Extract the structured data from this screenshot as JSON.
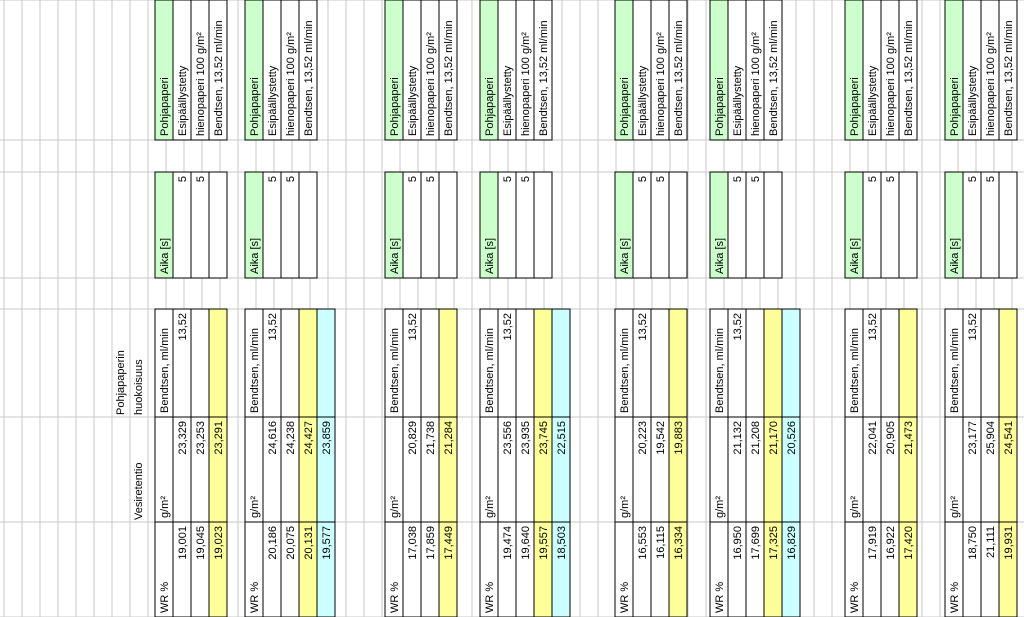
{
  "colors": {
    "green": "#ccffcc",
    "yellow": "#ffff99",
    "cyan": "#ccffff",
    "grid": "#c8c8c8",
    "border": "#000000",
    "text": "#000000"
  },
  "headers": {
    "vesiretentio": "Vesiretentio",
    "pohjapaperin_1": "Pohjapaperin",
    "pohjapaperin_2": "huokoisuus"
  },
  "blocks": [
    {
      "wr_label": "WR %",
      "wr_values": [
        "19,001",
        "19,045",
        "19,023"
      ],
      "gsm_label": "g/m²",
      "gsm_values": [
        "23,329",
        "23,253",
        "23,291"
      ],
      "bendtsen_label": "Bendtsen, ml/min",
      "bendtsen_values": [
        "13,52",
        "",
        ""
      ],
      "aika_label": "Aika [s]",
      "aika_values": [
        "5",
        "5",
        ""
      ],
      "info": [
        "Pohjapaperi",
        "Esipäällystetty",
        "hienopaperi 100 g/m²",
        "Bendtsen, 13,52 ml/min"
      ]
    },
    {
      "wr_label": "WR %",
      "wr_values": [
        "20,186",
        "20,075",
        "20,131",
        "19,577"
      ],
      "gsm_label": "g/m²",
      "gsm_values": [
        "24,616",
        "24,238",
        "24,427",
        "23,859"
      ],
      "bendtsen_label": "Bendtsen, ml/min",
      "bendtsen_values": [
        "13,52",
        "",
        "",
        ""
      ],
      "aika_label": "Aika [s]",
      "aika_values": [
        "5",
        "5",
        ""
      ],
      "info": [
        "Pohjapaperi",
        "Esipäällystetty",
        "hienopaperi 100 g/m²",
        "Bendtsen, 13,52 ml/min"
      ]
    },
    {
      "wr_label": "WR %",
      "wr_values": [
        "17,038",
        "17,859",
        "17,449"
      ],
      "gsm_label": "g/m²",
      "gsm_values": [
        "20,829",
        "21,738",
        "21,284"
      ],
      "bendtsen_label": "Bendtsen, ml/min",
      "bendtsen_values": [
        "13,52",
        "",
        ""
      ],
      "aika_label": "Aika [s]",
      "aika_values": [
        "5",
        "5",
        ""
      ],
      "info": [
        "Pohjapaperi",
        "Esipäällystetty",
        "hienopaperi 100 g/m²",
        "Bendtsen, 13,52 ml/min"
      ]
    },
    {
      "wr_label": "WR %",
      "wr_values": [
        "19,474",
        "19,640",
        "19,557",
        "18,503"
      ],
      "gsm_label": "g/m²",
      "gsm_values": [
        "23,556",
        "23,935",
        "23,745",
        "22,515"
      ],
      "bendtsen_label": "Bendtsen, ml/min",
      "bendtsen_values": [
        "13,52",
        "",
        "",
        ""
      ],
      "aika_label": "Aika [s]",
      "aika_values": [
        "5",
        "5",
        ""
      ],
      "info": [
        "Pohjapaperi",
        "Esipäällystetty",
        "hienopaperi 100 g/m²",
        "Bendtsen, 13,52 ml/min"
      ]
    },
    {
      "wr_label": "WR %",
      "wr_values": [
        "16,553",
        "16,115",
        "16,334"
      ],
      "gsm_label": "g/m²",
      "gsm_values": [
        "20,223",
        "19,542",
        "19,883"
      ],
      "bendtsen_label": "Bendtsen, ml/min",
      "bendtsen_values": [
        "13,52",
        "",
        ""
      ],
      "aika_label": "Aika [s]",
      "aika_values": [
        "5",
        "5",
        ""
      ],
      "info": [
        "Pohjapaperi",
        "Esipäällystetty",
        "hienopaperi 100 g/m²",
        "Bendtsen, 13,52 ml/min"
      ]
    },
    {
      "wr_label": "WR %",
      "wr_values": [
        "16,950",
        "17,699",
        "17,325",
        "16,829"
      ],
      "gsm_label": "g/m²",
      "gsm_values": [
        "21,132",
        "21,208",
        "21,170",
        "20,526"
      ],
      "bendtsen_label": "Bendtsen, ml/min",
      "bendtsen_values": [
        "13,52",
        "",
        "",
        ""
      ],
      "aika_label": "Aika [s]",
      "aika_values": [
        "5",
        "5",
        ""
      ],
      "info": [
        "Pohjapaperi",
        "Esipäällystetty",
        "hienopaperi 100 g/m²",
        "Bendtsen, 13,52 ml/min"
      ]
    },
    {
      "wr_label": "WR %",
      "wr_values": [
        "17,919",
        "16,922",
        "17,420"
      ],
      "gsm_label": "g/m²",
      "gsm_values": [
        "22,041",
        "20,905",
        "21,473"
      ],
      "bendtsen_label": "Bendtsen, ml/min",
      "bendtsen_values": [
        "13,52",
        "",
        ""
      ],
      "aika_label": "Aika [s]",
      "aika_values": [
        "5",
        "5",
        ""
      ],
      "info": [
        "Pohjapaperi",
        "Esipäällystetty",
        "hienopaperi 100 g/m²",
        "Bendtsen, 13,52 ml/min"
      ]
    },
    {
      "wr_label": "WR %",
      "wr_values": [
        "18,750",
        "21,111",
        "19,931"
      ],
      "gsm_label": "g/m²",
      "gsm_values": [
        "23,177",
        "25,904",
        "24,541"
      ],
      "bendtsen_label": "Bendtsen, ml/min",
      "bendtsen_values": [
        "13,52",
        "",
        ""
      ],
      "aika_label": "Aika [s]",
      "aika_values": [
        "5",
        "5",
        ""
      ],
      "info": [
        "Pohjapaperi",
        "Esipäällystetty",
        "hienopaperi 100 g/m²",
        "Bendtsen, 13,52 ml/min"
      ]
    }
  ]
}
